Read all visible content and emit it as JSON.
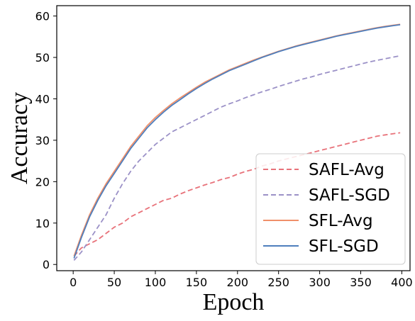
{
  "chart_data": {
    "type": "line",
    "xlabel": "Epoch",
    "ylabel": "Accuracy",
    "xlim": [
      -20,
      410
    ],
    "ylim": [
      -1.5,
      62.5
    ],
    "xticks": [
      0,
      50,
      100,
      150,
      200,
      250,
      300,
      350,
      400
    ],
    "yticks": [
      0,
      10,
      20,
      30,
      40,
      50,
      60
    ],
    "grid": false,
    "legend_position": "bottom-right",
    "series": [
      {
        "name": "SAFL-Avg",
        "color": "#e8727a",
        "style": "dashed",
        "points": [
          [
            1,
            2
          ],
          [
            10,
            4
          ],
          [
            20,
            5
          ],
          [
            30,
            6
          ],
          [
            40,
            7.5
          ],
          [
            50,
            9
          ],
          [
            60,
            10
          ],
          [
            70,
            11.5
          ],
          [
            80,
            12.5
          ],
          [
            90,
            13.5
          ],
          [
            100,
            14.5
          ],
          [
            110,
            15.5
          ],
          [
            120,
            16
          ],
          [
            130,
            17
          ],
          [
            140,
            17.8
          ],
          [
            150,
            18.5
          ],
          [
            160,
            19.2
          ],
          [
            170,
            19.8
          ],
          [
            180,
            20.5
          ],
          [
            190,
            21
          ],
          [
            200,
            21.8
          ],
          [
            210,
            22.5
          ],
          [
            220,
            23
          ],
          [
            230,
            23.8
          ],
          [
            240,
            24.3
          ],
          [
            250,
            25
          ],
          [
            260,
            25.5
          ],
          [
            270,
            26
          ],
          [
            280,
            26.5
          ],
          [
            290,
            27
          ],
          [
            300,
            27.5
          ],
          [
            310,
            28
          ],
          [
            320,
            28.5
          ],
          [
            330,
            29
          ],
          [
            340,
            29.5
          ],
          [
            350,
            30
          ],
          [
            360,
            30.5
          ],
          [
            370,
            31
          ],
          [
            380,
            31.3
          ],
          [
            390,
            31.6
          ],
          [
            398,
            31.8
          ]
        ]
      },
      {
        "name": "SAFL-SGD",
        "color": "#9b91c7",
        "style": "dashed",
        "points": [
          [
            1,
            1
          ],
          [
            10,
            3
          ],
          [
            20,
            6
          ],
          [
            30,
            9
          ],
          [
            40,
            12
          ],
          [
            50,
            16
          ],
          [
            60,
            19.5
          ],
          [
            70,
            22.5
          ],
          [
            80,
            25
          ],
          [
            90,
            27
          ],
          [
            100,
            29
          ],
          [
            110,
            30.5
          ],
          [
            120,
            32
          ],
          [
            130,
            33
          ],
          [
            140,
            34
          ],
          [
            150,
            35
          ],
          [
            160,
            36
          ],
          [
            170,
            37
          ],
          [
            180,
            38
          ],
          [
            190,
            38.8
          ],
          [
            200,
            39.5
          ],
          [
            210,
            40.3
          ],
          [
            220,
            41
          ],
          [
            230,
            41.7
          ],
          [
            240,
            42.3
          ],
          [
            250,
            43
          ],
          [
            260,
            43.6
          ],
          [
            270,
            44.2
          ],
          [
            280,
            44.8
          ],
          [
            290,
            45.3
          ],
          [
            300,
            45.9
          ],
          [
            310,
            46.4
          ],
          [
            320,
            46.9
          ],
          [
            330,
            47.4
          ],
          [
            340,
            47.9
          ],
          [
            350,
            48.4
          ],
          [
            360,
            48.9
          ],
          [
            370,
            49.3
          ],
          [
            380,
            49.7
          ],
          [
            390,
            50.1
          ],
          [
            398,
            50.4
          ]
        ]
      },
      {
        "name": "SFL-Avg",
        "color": "#f0906a",
        "style": "solid",
        "points": [
          [
            1,
            2
          ],
          [
            10,
            7
          ],
          [
            20,
            12
          ],
          [
            30,
            16
          ],
          [
            40,
            19.5
          ],
          [
            50,
            22.5
          ],
          [
            60,
            25.5
          ],
          [
            70,
            28.5
          ],
          [
            80,
            31
          ],
          [
            90,
            33.5
          ],
          [
            100,
            35.5
          ],
          [
            110,
            37.2
          ],
          [
            120,
            38.8
          ],
          [
            130,
            40.2
          ],
          [
            140,
            41.5
          ],
          [
            150,
            42.8
          ],
          [
            160,
            44
          ],
          [
            170,
            45
          ],
          [
            180,
            46
          ],
          [
            190,
            47
          ],
          [
            200,
            47.8
          ],
          [
            210,
            48.6
          ],
          [
            220,
            49.4
          ],
          [
            230,
            50.1
          ],
          [
            240,
            50.8
          ],
          [
            250,
            51.5
          ],
          [
            260,
            52.1
          ],
          [
            270,
            52.7
          ],
          [
            280,
            53.2
          ],
          [
            290,
            53.7
          ],
          [
            300,
            54.2
          ],
          [
            310,
            54.7
          ],
          [
            320,
            55.2
          ],
          [
            330,
            55.6
          ],
          [
            340,
            56
          ],
          [
            350,
            56.4
          ],
          [
            360,
            56.8
          ],
          [
            370,
            57.2
          ],
          [
            380,
            57.5
          ],
          [
            390,
            57.8
          ],
          [
            398,
            58
          ]
        ]
      },
      {
        "name": "SFL-SGD",
        "color": "#4f7fbd",
        "style": "solid",
        "points": [
          [
            1,
            1.5
          ],
          [
            10,
            6.5
          ],
          [
            20,
            11.5
          ],
          [
            30,
            15.5
          ],
          [
            40,
            19
          ],
          [
            50,
            22
          ],
          [
            60,
            25
          ],
          [
            70,
            28
          ],
          [
            80,
            30.5
          ],
          [
            90,
            33
          ],
          [
            100,
            35
          ],
          [
            110,
            36.8
          ],
          [
            120,
            38.4
          ],
          [
            130,
            39.8
          ],
          [
            140,
            41.2
          ],
          [
            150,
            42.5
          ],
          [
            160,
            43.7
          ],
          [
            170,
            44.8
          ],
          [
            180,
            45.8
          ],
          [
            190,
            46.8
          ],
          [
            200,
            47.6
          ],
          [
            210,
            48.4
          ],
          [
            220,
            49.2
          ],
          [
            230,
            50
          ],
          [
            240,
            50.7
          ],
          [
            250,
            51.4
          ],
          [
            260,
            52
          ],
          [
            270,
            52.6
          ],
          [
            280,
            53.1
          ],
          [
            290,
            53.6
          ],
          [
            300,
            54.1
          ],
          [
            310,
            54.6
          ],
          [
            320,
            55.1
          ],
          [
            330,
            55.5
          ],
          [
            340,
            55.9
          ],
          [
            350,
            56.3
          ],
          [
            360,
            56.7
          ],
          [
            370,
            57.1
          ],
          [
            380,
            57.4
          ],
          [
            390,
            57.7
          ],
          [
            398,
            57.9
          ]
        ]
      }
    ]
  }
}
